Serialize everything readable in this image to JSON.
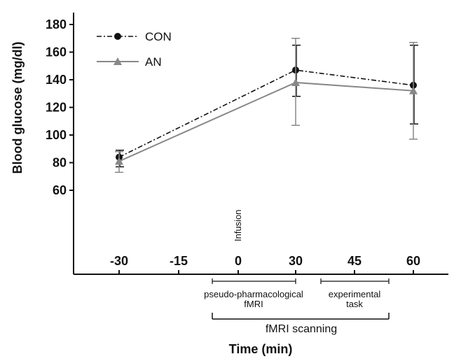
{
  "chart_data": {
    "type": "line",
    "xlabel": "Time (min)",
    "ylabel": "Blood glucose (mg/dl)",
    "x_ticks": [
      -30,
      -15,
      0,
      30,
      45,
      60
    ],
    "y_ticks": [
      60,
      80,
      100,
      120,
      140,
      160,
      180
    ],
    "ylim": [
      0,
      180
    ],
    "series": [
      {
        "name": "CON",
        "color": "#111111",
        "line_style": "dash-dot",
        "marker": "circle",
        "x": [
          -30,
          30,
          60
        ],
        "y": [
          84,
          147,
          136
        ],
        "y_err_low": [
          77,
          128,
          108
        ],
        "y_err_high": [
          89,
          165,
          165
        ]
      },
      {
        "name": "AN",
        "color": "#888888",
        "line_style": "solid",
        "marker": "triangle",
        "x": [
          -30,
          30,
          60
        ],
        "y": [
          81,
          138,
          132
        ],
        "y_err_low": [
          73,
          107,
          97
        ],
        "y_err_high": [
          88,
          170,
          167
        ]
      }
    ],
    "legend_position": "top-left",
    "annotations": {
      "infusion": "Infusion",
      "pseudo_fmri_line1": "pseudo-pharmacological",
      "pseudo_fmri_line2": "fMRI",
      "task_line1": "experimental",
      "task_line2": "task",
      "scanning": "fMRI scanning"
    }
  }
}
